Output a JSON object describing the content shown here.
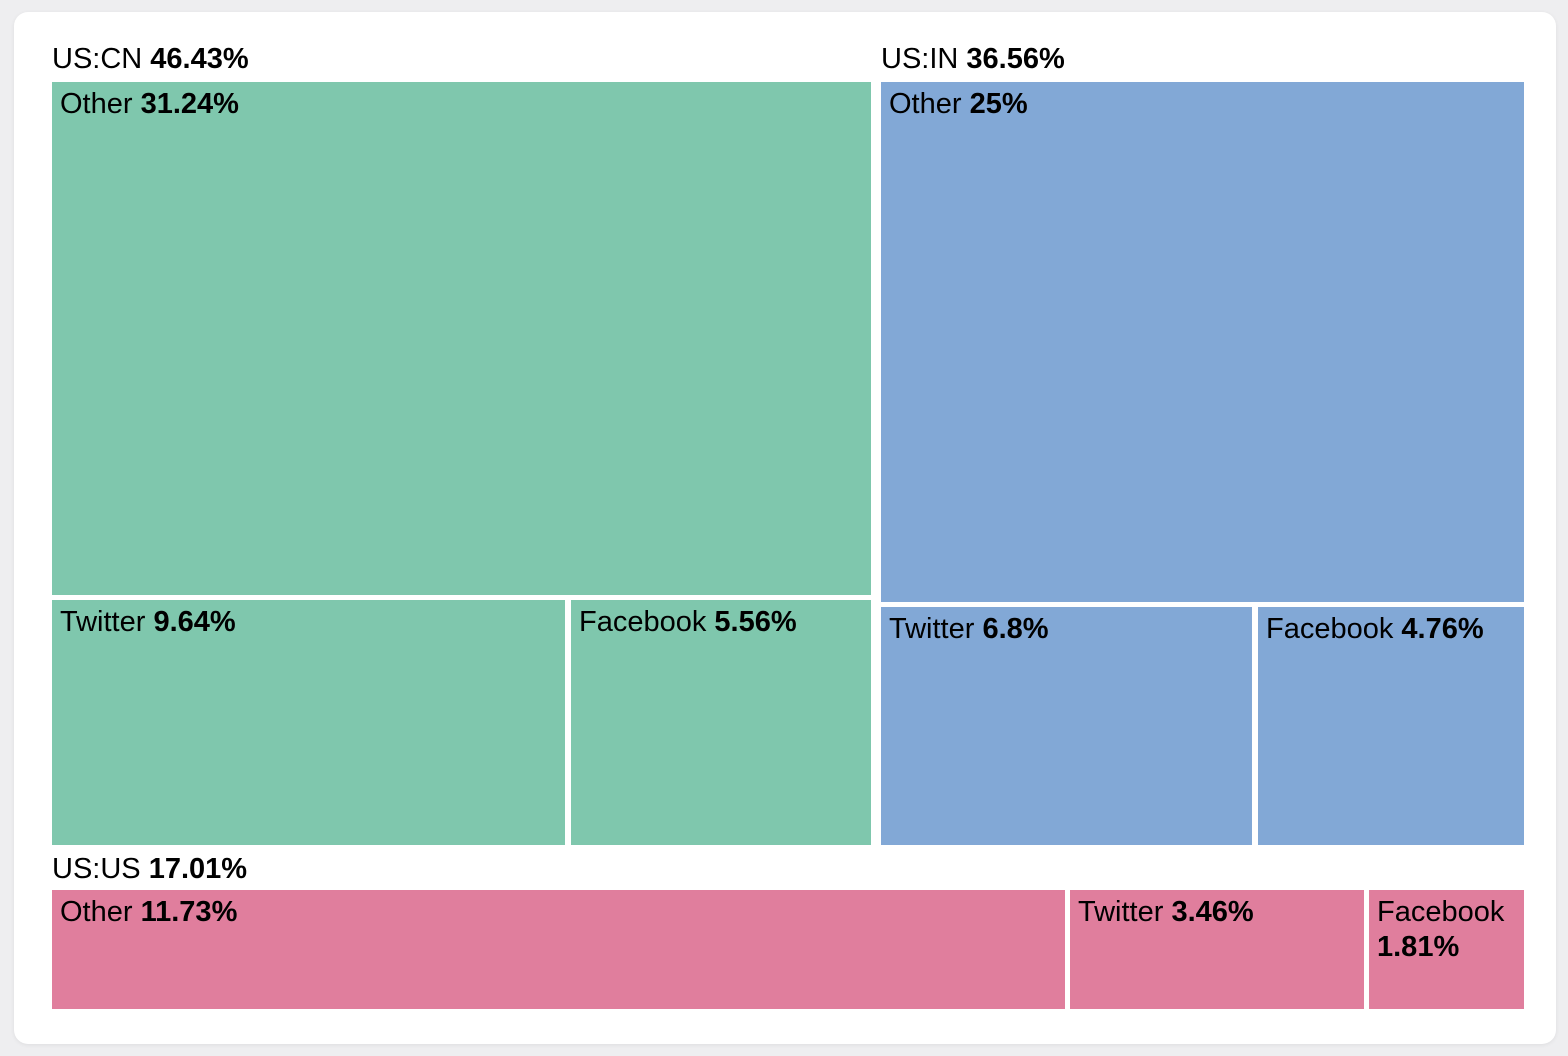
{
  "page": {
    "background_color": "#eeeef0",
    "card_color": "#ffffff",
    "text_color": "#000000"
  },
  "chart_data": {
    "type": "treemap",
    "unit": "%",
    "legend": "none",
    "layout_hint": "three top-level groups sized by value; each group contains Other / Twitter / Facebook tiles; group label shown above its region, child labels at tile top-left",
    "groups": [
      {
        "name": "US:CN",
        "value": 46.43,
        "value_label": "46.43%",
        "color": "#7fc7ad",
        "children": [
          {
            "name": "Other",
            "value": 31.24,
            "value_label": "31.24%"
          },
          {
            "name": "Twitter",
            "value": 9.64,
            "value_label": "9.64%"
          },
          {
            "name": "Facebook",
            "value": 5.56,
            "value_label": "5.56%"
          }
        ]
      },
      {
        "name": "US:IN",
        "value": 36.56,
        "value_label": "36.56%",
        "color": "#82a8d6",
        "children": [
          {
            "name": "Other",
            "value": 25,
            "value_label": "25%"
          },
          {
            "name": "Twitter",
            "value": 6.8,
            "value_label": "6.8%"
          },
          {
            "name": "Facebook",
            "value": 4.76,
            "value_label": "4.76%"
          }
        ]
      },
      {
        "name": "US:US",
        "value": 17.01,
        "value_label": "17.01%",
        "color": "#e07e9d",
        "children": [
          {
            "name": "Other",
            "value": 11.73,
            "value_label": "11.73%"
          },
          {
            "name": "Twitter",
            "value": 3.46,
            "value_label": "3.46%"
          },
          {
            "name": "Facebook",
            "value": 1.81,
            "value_label": "1.81%"
          }
        ]
      }
    ]
  }
}
